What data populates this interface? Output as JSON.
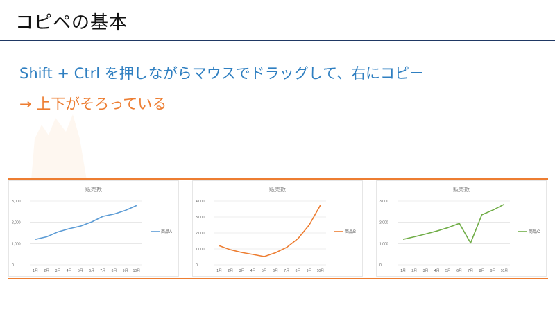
{
  "slide": {
    "title": "コピペの基本",
    "line1": "Shift + Ctrl を押しながらマウスでドラッグして、右にコピー",
    "line2": "→ 上下がそろっている"
  },
  "colors": {
    "title_rule": "#1f3864",
    "accent_blue": "#2f7fc1",
    "accent_orange": "#ed7d31",
    "series_a": "#5b9bd5",
    "series_b": "#ed7d31",
    "series_c": "#70ad47"
  },
  "chart_data": [
    {
      "type": "line",
      "title": "販売数",
      "categories": [
        "1月",
        "2月",
        "3月",
        "4月",
        "5月",
        "6月",
        "7月",
        "8月",
        "9月",
        "10月"
      ],
      "series": [
        {
          "name": "商品A",
          "values": [
            1200,
            1320,
            1550,
            1700,
            1820,
            2020,
            2280,
            2390,
            2560,
            2790
          ],
          "color": "#5b9bd5"
        }
      ],
      "ylim": [
        0,
        3000
      ],
      "yticks": [
        0,
        1000,
        2000,
        3000
      ],
      "ytick_labels": [
        "0",
        "1,000",
        "2,000",
        "3,000"
      ],
      "legend": "right",
      "grid": true
    },
    {
      "type": "line",
      "title": "販売数",
      "categories": [
        "1月",
        "2月",
        "3月",
        "4月",
        "5月",
        "6月",
        "7月",
        "8月",
        "9月",
        "10月"
      ],
      "series": [
        {
          "name": "商品B",
          "values": [
            1200,
            950,
            780,
            650,
            520,
            760,
            1100,
            1650,
            2500,
            3750
          ],
          "color": "#ed7d31"
        }
      ],
      "ylim": [
        0,
        4000
      ],
      "yticks": [
        0,
        1000,
        2000,
        3000,
        4000
      ],
      "ytick_labels": [
        "0",
        "1,000",
        "2,000",
        "3,000",
        "4,000"
      ],
      "legend": "right",
      "grid": true
    },
    {
      "type": "line",
      "title": "販売数",
      "categories": [
        "1月",
        "2月",
        "3月",
        "4月",
        "5月",
        "6月",
        "7月",
        "8月",
        "9月",
        "10月"
      ],
      "series": [
        {
          "name": "商品C",
          "values": [
            1200,
            1320,
            1450,
            1590,
            1750,
            1950,
            1030,
            2350,
            2580,
            2850
          ],
          "color": "#70ad47"
        }
      ],
      "ylim": [
        0,
        3000
      ],
      "yticks": [
        0,
        1000,
        2000,
        3000
      ],
      "ytick_labels": [
        "0",
        "1,000",
        "2,000",
        "3,000"
      ],
      "legend": "right",
      "grid": true
    }
  ]
}
